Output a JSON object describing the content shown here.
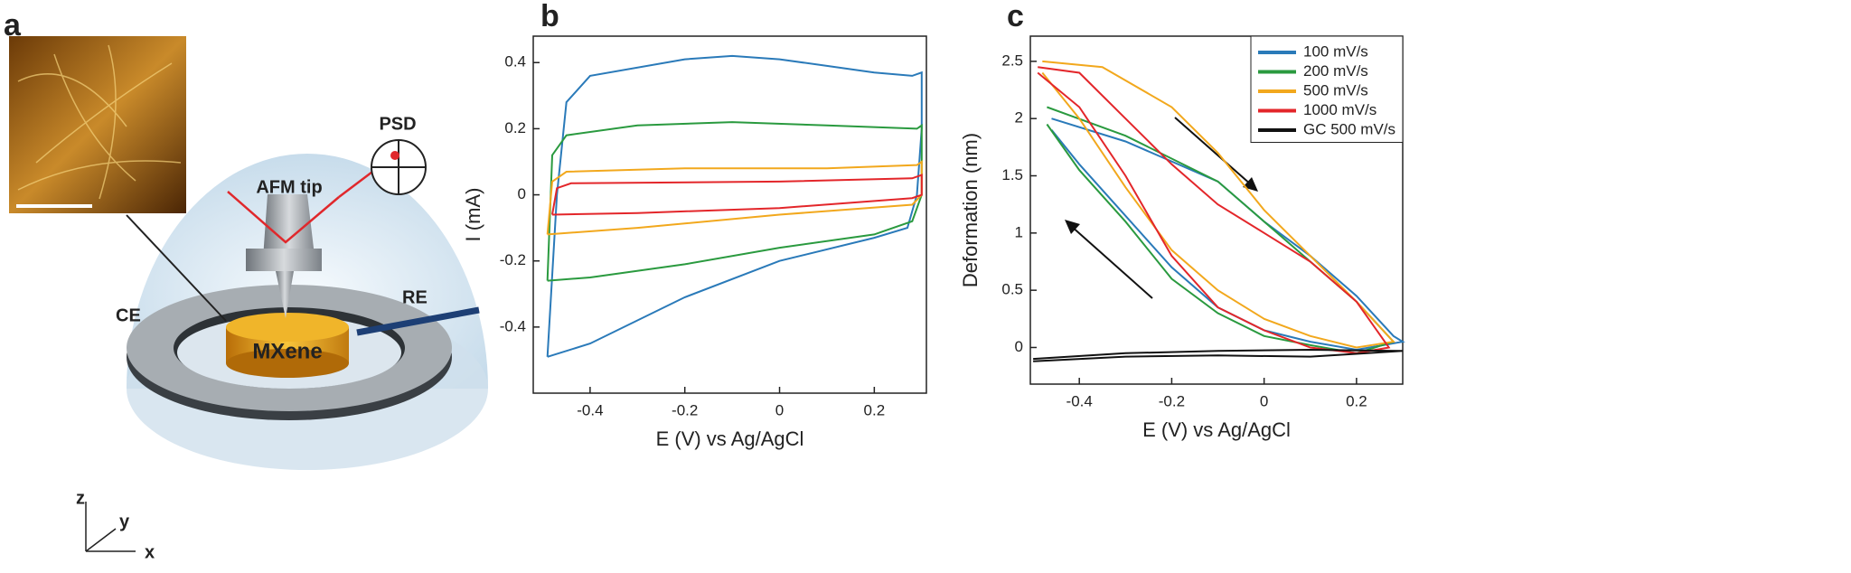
{
  "panels": [
    "a",
    "b",
    "c"
  ],
  "diagram": {
    "labels": {
      "tip": "AFM tip",
      "psd": "PSD",
      "ce": "CE",
      "re": "RE",
      "sample": "MXene",
      "z": "z",
      "y": "y",
      "x": "x"
    }
  },
  "chart_data": [
    {
      "type": "line",
      "xlabel": "E (V) vs Ag/AgCl",
      "ylabel": "I (mA)",
      "xlim": [
        -0.52,
        0.31
      ],
      "ylim": [
        -0.6,
        0.48
      ],
      "xticks": [
        -0.4,
        -0.2,
        0,
        0.2
      ],
      "yticks": [
        -0.4,
        -0.2,
        0,
        0.2,
        0.4
      ],
      "series": [
        {
          "color": "#2a7ab9",
          "x": [
            -0.49,
            -0.47,
            -0.45,
            -0.4,
            -0.2,
            -0.1,
            0,
            0.1,
            0.2,
            0.28,
            0.3,
            0.3,
            0.29,
            0.27,
            0.2,
            0,
            -0.2,
            -0.4,
            -0.49
          ],
          "values": [
            -0.49,
            0.0,
            0.28,
            0.36,
            0.41,
            0.42,
            0.41,
            0.39,
            0.37,
            0.36,
            0.37,
            0.2,
            0.0,
            -0.1,
            -0.13,
            -0.2,
            -0.31,
            -0.45,
            -0.49
          ]
        },
        {
          "color": "#2a9a3f",
          "x": [
            -0.49,
            -0.48,
            -0.45,
            -0.3,
            -0.1,
            0.1,
            0.29,
            0.3,
            0.3,
            0.28,
            0.2,
            0,
            -0.2,
            -0.4,
            -0.49
          ],
          "values": [
            -0.26,
            0.12,
            0.18,
            0.21,
            0.22,
            0.21,
            0.2,
            0.21,
            0.0,
            -0.08,
            -0.12,
            -0.16,
            -0.21,
            -0.25,
            -0.26
          ]
        },
        {
          "color": "#f2a81d",
          "x": [
            -0.49,
            -0.48,
            -0.45,
            -0.2,
            0.1,
            0.29,
            0.3,
            0.3,
            0.28,
            0,
            -0.3,
            -0.49
          ],
          "values": [
            -0.12,
            0.04,
            0.07,
            0.08,
            0.08,
            0.09,
            0.1,
            0.0,
            -0.03,
            -0.06,
            -0.1,
            -0.12
          ]
        },
        {
          "color": "#e3262a",
          "x": [
            -0.48,
            -0.47,
            -0.44,
            0,
            0.28,
            0.3,
            0.3,
            0.28,
            0,
            -0.3,
            -0.48
          ],
          "values": [
            -0.06,
            0.02,
            0.035,
            0.04,
            0.05,
            0.06,
            0.0,
            -0.01,
            -0.04,
            -0.055,
            -0.06
          ]
        }
      ]
    },
    {
      "type": "line",
      "xlabel": "E (V) vs Ag/AgCl",
      "ylabel": "Deformation (nm)",
      "xlim": [
        -0.506,
        0.3
      ],
      "ylim": [
        -0.32,
        2.72
      ],
      "xticks": [
        -0.4,
        -0.2,
        0,
        0.2
      ],
      "yticks": [
        0,
        0.5,
        1,
        1.5,
        2,
        2.5
      ],
      "series": [
        {
          "name": "100 mV/s",
          "color": "#2a7ab9",
          "x": [
            -0.46,
            -0.3,
            -0.1,
            0,
            0.1,
            0.2,
            0.28,
            0.3,
            0.2,
            0.1,
            0,
            -0.1,
            -0.2,
            -0.3,
            -0.4,
            -0.46
          ],
          "values": [
            2.0,
            1.8,
            1.45,
            1.1,
            0.8,
            0.45,
            0.1,
            0.05,
            -0.02,
            0.05,
            0.15,
            0.35,
            0.7,
            1.15,
            1.6,
            1.9
          ]
        },
        {
          "name": "200 mV/s",
          "color": "#2a9a3f",
          "x": [
            -0.47,
            -0.3,
            -0.1,
            0,
            0.1,
            0.2,
            0.28,
            0.2,
            0.1,
            0,
            -0.1,
            -0.2,
            -0.3,
            -0.4,
            -0.47
          ],
          "values": [
            2.1,
            1.85,
            1.45,
            1.1,
            0.75,
            0.4,
            0.05,
            -0.05,
            0.02,
            0.1,
            0.3,
            0.6,
            1.1,
            1.55,
            1.95
          ]
        },
        {
          "name": "500 mV/s",
          "color": "#f2a81d",
          "x": [
            -0.48,
            -0.35,
            -0.2,
            -0.1,
            0,
            0.1,
            0.2,
            0.28,
            0.2,
            0.1,
            0,
            -0.1,
            -0.2,
            -0.3,
            -0.4,
            -0.48
          ],
          "values": [
            2.5,
            2.45,
            2.1,
            1.7,
            1.2,
            0.8,
            0.4,
            0.05,
            0.0,
            0.1,
            0.25,
            0.5,
            0.85,
            1.4,
            2.0,
            2.4
          ]
        },
        {
          "name": "1000 mV/s",
          "color": "#e3262a",
          "x": [
            -0.49,
            -0.4,
            -0.3,
            -0.2,
            -0.1,
            0,
            0.1,
            0.2,
            0.27,
            0.2,
            0.1,
            0,
            -0.1,
            -0.2,
            -0.3,
            -0.4,
            -0.49
          ],
          "values": [
            2.45,
            2.4,
            2.0,
            1.6,
            1.25,
            1.0,
            0.75,
            0.4,
            0.0,
            -0.05,
            0.0,
            0.15,
            0.35,
            0.8,
            1.5,
            2.1,
            2.4
          ]
        },
        {
          "name": "GC 500 mV/s",
          "color": "#111111",
          "x": [
            -0.5,
            -0.3,
            -0.1,
            0.1,
            0.3,
            0.1,
            -0.1,
            -0.3,
            -0.5
          ],
          "values": [
            -0.1,
            -0.05,
            -0.03,
            -0.02,
            -0.03,
            -0.08,
            -0.07,
            -0.08,
            -0.12
          ]
        }
      ]
    }
  ]
}
